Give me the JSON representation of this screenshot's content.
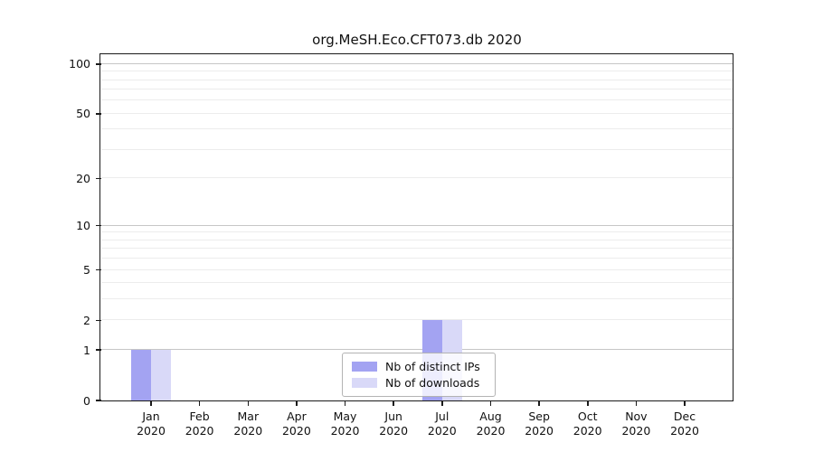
{
  "chart_data": {
    "type": "bar",
    "title": "org.MeSH.Eco.CFT073.db 2020",
    "categories": [
      "Jan",
      "Feb",
      "Mar",
      "Apr",
      "May",
      "Jun",
      "Jul",
      "Aug",
      "Sep",
      "Oct",
      "Nov",
      "Dec"
    ],
    "category_year": "2020",
    "series": [
      {
        "name": "Nb of distinct IPs",
        "color": "#a3a3f2",
        "values": [
          1,
          0,
          0,
          0,
          0,
          0,
          2,
          0,
          0,
          0,
          0,
          0
        ]
      },
      {
        "name": "Nb of downloads",
        "color": "#d9d9f8",
        "values": [
          1,
          0,
          0,
          0,
          0,
          0,
          2,
          0,
          0,
          0,
          0,
          0
        ]
      }
    ],
    "y_axis": {
      "scale": "log1p",
      "tick_values": [
        0,
        1,
        2,
        5,
        10,
        20,
        50,
        100
      ],
      "range": [
        0,
        113
      ],
      "minor_grid_values": [
        2,
        3,
        4,
        5,
        6,
        7,
        8,
        9,
        20,
        30,
        40,
        50,
        60,
        70,
        80,
        90
      ],
      "major_grid_values": [
        1,
        10,
        100
      ]
    },
    "legend": {
      "position": "bottom-center"
    },
    "grid": true,
    "colors": {
      "axis": "#1a1a1a",
      "minor_grid": "#ececec",
      "major_grid": "#c6c6c6",
      "background": "#ffffff"
    }
  }
}
